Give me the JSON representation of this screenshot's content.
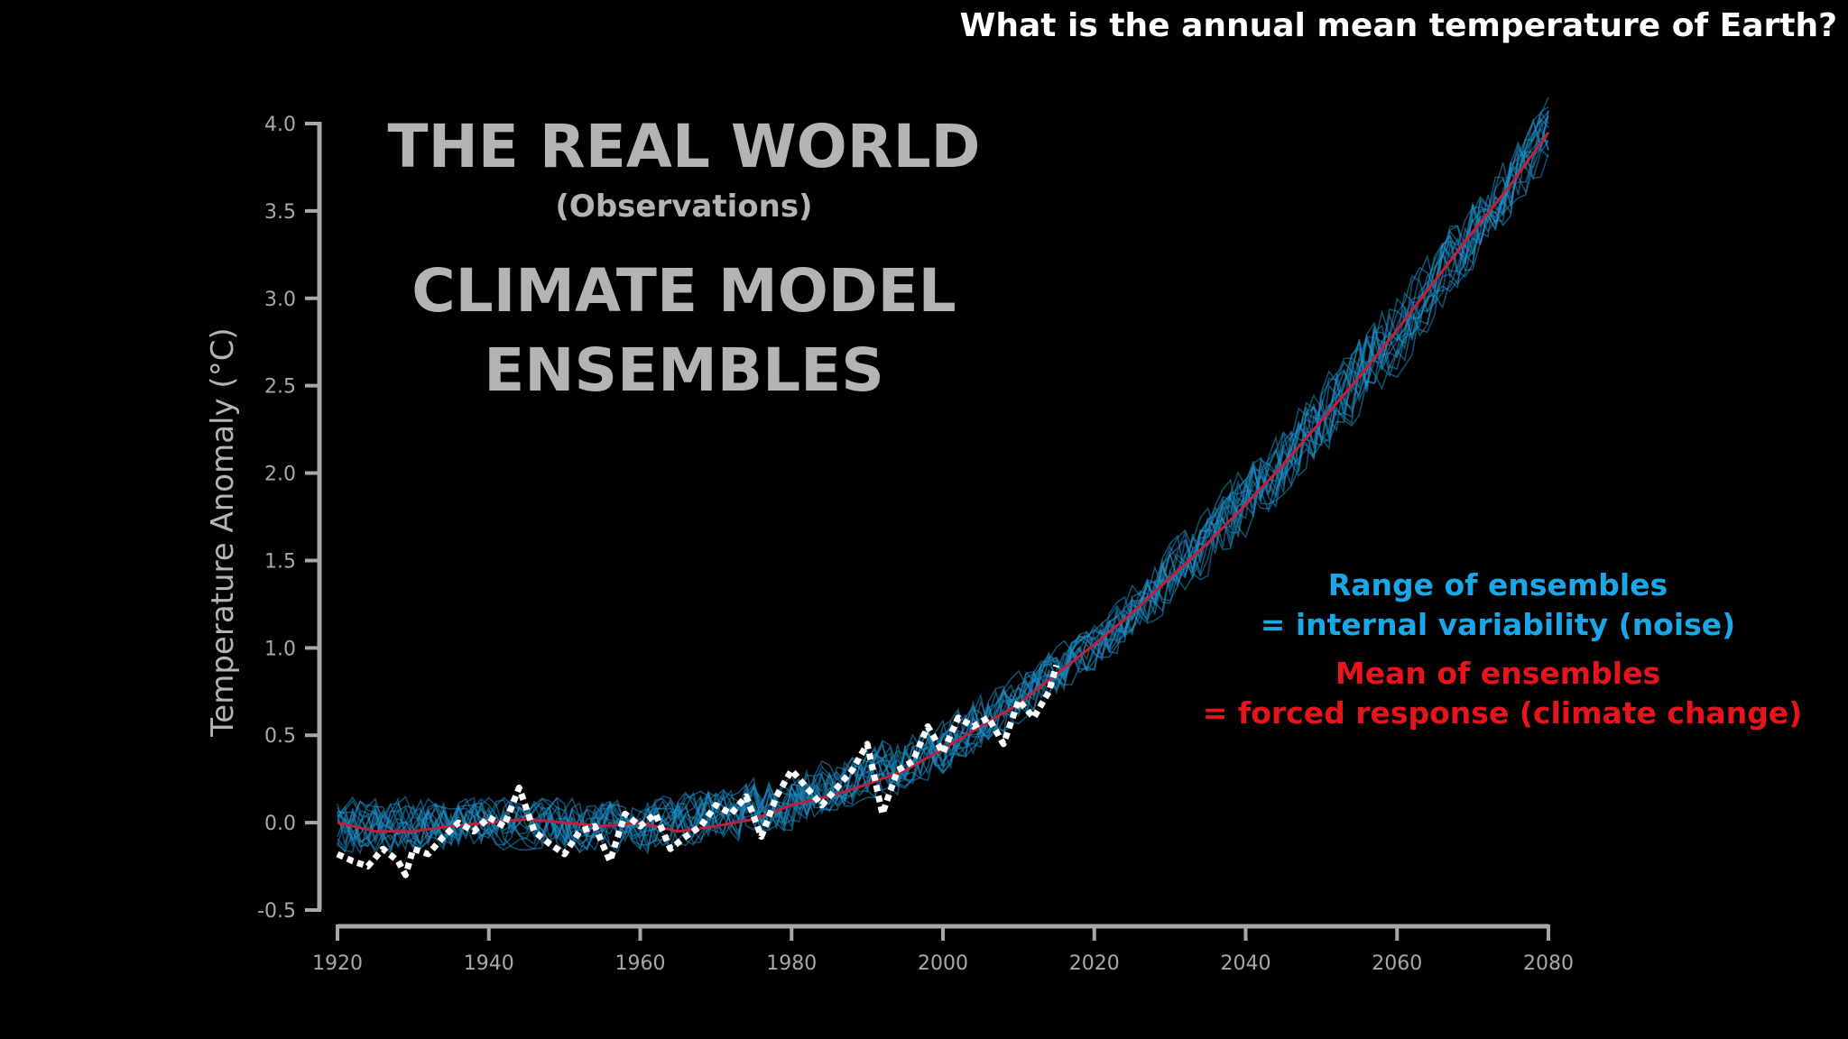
{
  "question": "What is the annual mean temperature of Earth?",
  "colors": {
    "background": "#000000",
    "axis": "#a8a8a8",
    "title": "#b4b4b4",
    "ensemble": "#1e90c8",
    "ensemble_label": "#1ba6e6",
    "mean": "#c21f3a",
    "mean_label": "#e8141c",
    "observations": "#ffffff"
  },
  "chart_data": {
    "type": "line",
    "title": [
      "THE REAL WORLD",
      "(Observations)",
      "CLIMATE MODEL",
      "ENSEMBLES"
    ],
    "xlabel": "",
    "ylabel": "Temperature Anomaly (°C)",
    "xlim": [
      1920,
      2080
    ],
    "ylim": [
      -0.5,
      4.0
    ],
    "xticks": [
      "1920",
      "1940",
      "1960",
      "1980",
      "2000",
      "2020",
      "2040",
      "2060",
      "2080"
    ],
    "yticks": [
      "4.0",
      "3.5",
      "3.0",
      "2.5",
      "2.0",
      "1.5",
      "1.0",
      "0.5",
      "0.0",
      "-0.5"
    ],
    "legend": [
      {
        "lines": [
          "Range of ensembles",
          "= internal variability (noise)"
        ],
        "color": "#1ba6e6"
      },
      {
        "lines": [
          "Mean of ensembles",
          "= forced response (climate change)"
        ],
        "color": "#e8141c"
      }
    ],
    "series": [
      {
        "line_style": "dotted",
        "x": [
          1920,
          1922,
          1924,
          1926,
          1928,
          1929,
          1930,
          1932,
          1934,
          1936,
          1938,
          1940,
          1942,
          1944,
          1946,
          1948,
          1950,
          1952,
          1954,
          1956,
          1958,
          1960,
          1962,
          1964,
          1966,
          1968,
          1970,
          1972,
          1974,
          1976,
          1978,
          1980,
          1982,
          1984,
          1986,
          1988,
          1990,
          1992,
          1994,
          1996,
          1998,
          2000,
          2002,
          2004,
          2006,
          2008,
          2010,
          2012,
          2014,
          2015
        ],
        "values": [
          -0.18,
          -0.22,
          -0.25,
          -0.15,
          -0.22,
          -0.3,
          -0.15,
          -0.18,
          -0.08,
          0.0,
          -0.05,
          0.03,
          -0.02,
          0.2,
          -0.05,
          -0.12,
          -0.18,
          -0.05,
          -0.02,
          -0.22,
          0.05,
          -0.02,
          0.05,
          -0.15,
          -0.08,
          -0.02,
          0.1,
          0.05,
          0.15,
          -0.08,
          0.15,
          0.3,
          0.2,
          0.1,
          0.2,
          0.3,
          0.45,
          0.05,
          0.3,
          0.35,
          0.55,
          0.4,
          0.6,
          0.55,
          0.6,
          0.45,
          0.7,
          0.6,
          0.75,
          0.9
        ]
      },
      {
        "line_style": "solid",
        "x": [
          1920,
          1925,
          1930,
          1935,
          1940,
          1945,
          1950,
          1955,
          1960,
          1965,
          1970,
          1975,
          1980,
          1985,
          1990,
          1995,
          2000,
          2005,
          2010,
          2015,
          2020,
          2025,
          2030,
          2035,
          2040,
          2045,
          2050,
          2055,
          2060,
          2065,
          2070,
          2075,
          2080
        ],
        "values": [
          0.0,
          -0.05,
          -0.05,
          -0.02,
          0.0,
          0.02,
          0.0,
          -0.02,
          0.0,
          -0.05,
          -0.02,
          0.02,
          0.1,
          0.15,
          0.22,
          0.3,
          0.42,
          0.55,
          0.68,
          0.85,
          1.02,
          1.2,
          1.4,
          1.6,
          1.82,
          2.05,
          2.3,
          2.55,
          2.82,
          3.1,
          3.38,
          3.65,
          3.95
        ]
      }
    ],
    "ensemble_band": {
      "x": [
        1920,
        1940,
        1960,
        1980,
        2000,
        2020,
        2040,
        2060,
        2080
      ],
      "low": [
        -0.2,
        -0.15,
        -0.2,
        -0.05,
        0.25,
        0.85,
        1.6,
        2.55,
        3.75
      ],
      "high": [
        0.15,
        0.15,
        0.15,
        0.3,
        0.6,
        1.15,
        2.05,
        3.05,
        4.15
      ]
    }
  }
}
